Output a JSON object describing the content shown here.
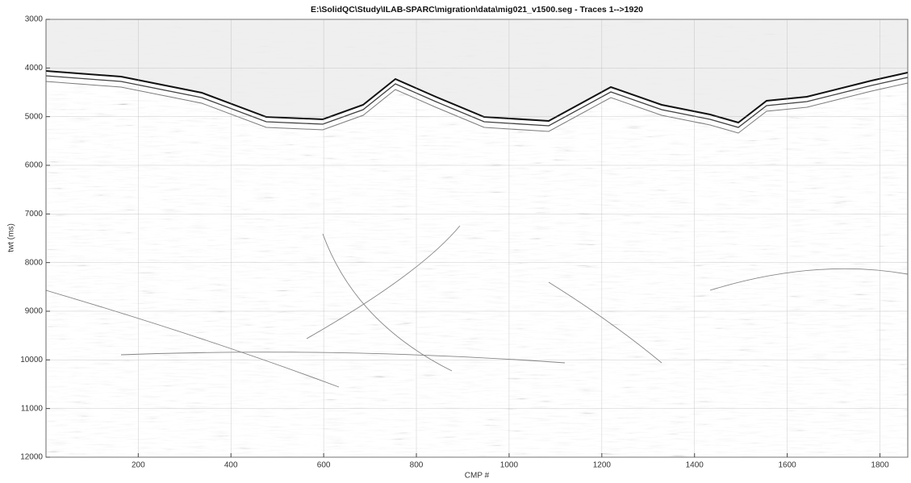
{
  "chart_data": {
    "type": "image",
    "title": "E:\\SolidQC\\Study\\ILAB-SPARC\\migration\\data\\mig021_v1500.seg - Traces 1-->1920",
    "x_label": "CMP #",
    "y_label": "twt (ms)",
    "xlim": [
      1,
      1860
    ],
    "ylim": [
      3000,
      12000
    ],
    "y_reversed": true,
    "xticks": [
      200,
      400,
      600,
      800,
      1000,
      1200,
      1400,
      1600,
      1800
    ],
    "yticks": [
      3000,
      4000,
      5000,
      6000,
      7000,
      8000,
      9000,
      10000,
      11000,
      12000
    ],
    "grid": true
  }
}
